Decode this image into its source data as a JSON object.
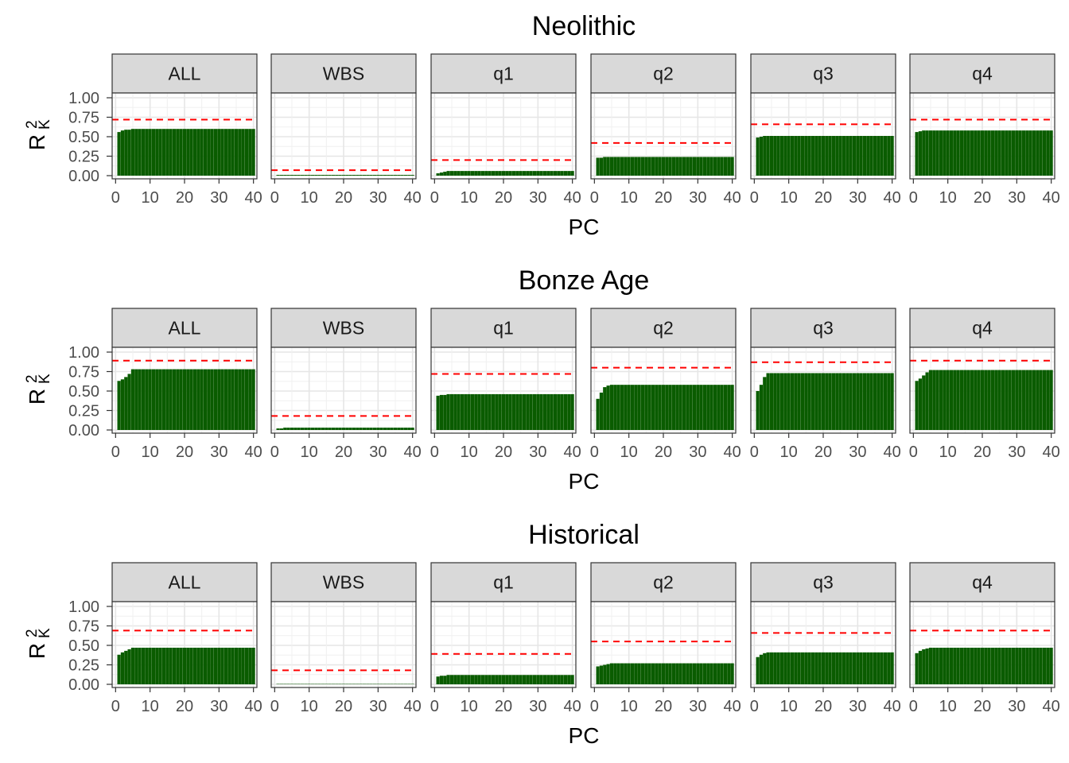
{
  "chart_data": {
    "type": "bar",
    "xlabel": "PC",
    "ylabel": {
      "base": "R",
      "superscript": "2",
      "subscript": "K"
    },
    "facets": [
      "ALL",
      "WBS",
      "q1",
      "q2",
      "q3",
      "q4"
    ],
    "x_ticks": [
      0,
      10,
      20,
      30,
      40
    ],
    "xlim": [
      -1,
      41
    ],
    "y_ticks": [
      "0.00",
      "0.25",
      "0.50",
      "0.75",
      "1.00"
    ],
    "ylim": [
      0,
      1.0
    ],
    "grid": true,
    "bar_color": "#0a5c00",
    "threshold_color": "#ff0000",
    "x": [
      1,
      2,
      3,
      4,
      5,
      6,
      7,
      8,
      9,
      10,
      11,
      12,
      13,
      14,
      15,
      16,
      17,
      18,
      19,
      20,
      21,
      22,
      23,
      24,
      25,
      26,
      27,
      28,
      29,
      30,
      31,
      32,
      33,
      34,
      35,
      36,
      37,
      38,
      39,
      40
    ],
    "panels": [
      {
        "title": "Neolithic",
        "series": [
          {
            "facet": "ALL",
            "threshold": 0.72,
            "start": [
              0.56,
              0.58,
              0.59,
              0.59
            ],
            "plateau": 0.6
          },
          {
            "facet": "WBS",
            "threshold": 0.07,
            "start": [
              0.01
            ],
            "plateau": 0.01
          },
          {
            "facet": "q1",
            "threshold": 0.2,
            "start": [
              0.03,
              0.04,
              0.05
            ],
            "plateau": 0.06
          },
          {
            "facet": "q2",
            "threshold": 0.42,
            "start": [
              0.23,
              0.23,
              0.24
            ],
            "plateau": 0.24
          },
          {
            "facet": "q3",
            "threshold": 0.66,
            "start": [
              0.49,
              0.5,
              0.51
            ],
            "plateau": 0.51
          },
          {
            "facet": "q4",
            "threshold": 0.72,
            "start": [
              0.56,
              0.57,
              0.58
            ],
            "plateau": 0.58
          }
        ]
      },
      {
        "title": "Bonze Age",
        "series": [
          {
            "facet": "ALL",
            "threshold": 0.89,
            "start": [
              0.63,
              0.65,
              0.68,
              0.72
            ],
            "plateau": 0.78
          },
          {
            "facet": "WBS",
            "threshold": 0.18,
            "start": [
              0.02,
              0.02
            ],
            "plateau": 0.03
          },
          {
            "facet": "q1",
            "threshold": 0.72,
            "start": [
              0.44,
              0.45,
              0.45
            ],
            "plateau": 0.46
          },
          {
            "facet": "q2",
            "threshold": 0.8,
            "start": [
              0.4,
              0.48,
              0.55,
              0.57
            ],
            "plateau": 0.58
          },
          {
            "facet": "q3",
            "threshold": 0.87,
            "start": [
              0.5,
              0.58,
              0.68
            ],
            "plateau": 0.73
          },
          {
            "facet": "q4",
            "threshold": 0.89,
            "start": [
              0.63,
              0.66,
              0.7,
              0.74
            ],
            "plateau": 0.77
          }
        ]
      },
      {
        "title": "Historical",
        "series": [
          {
            "facet": "ALL",
            "threshold": 0.69,
            "start": [
              0.38,
              0.41,
              0.43,
              0.45
            ],
            "plateau": 0.47
          },
          {
            "facet": "WBS",
            "threshold": 0.18,
            "start": [
              0.005
            ],
            "plateau": 0.005
          },
          {
            "facet": "q1",
            "threshold": 0.39,
            "start": [
              0.1,
              0.11,
              0.11
            ],
            "plateau": 0.12
          },
          {
            "facet": "q2",
            "threshold": 0.55,
            "start": [
              0.23,
              0.24,
              0.25,
              0.26
            ],
            "plateau": 0.27
          },
          {
            "facet": "q3",
            "threshold": 0.66,
            "start": [
              0.35,
              0.38,
              0.4
            ],
            "plateau": 0.41
          },
          {
            "facet": "q4",
            "threshold": 0.69,
            "start": [
              0.4,
              0.43,
              0.45,
              0.46
            ],
            "plateau": 0.47
          }
        ]
      }
    ]
  }
}
